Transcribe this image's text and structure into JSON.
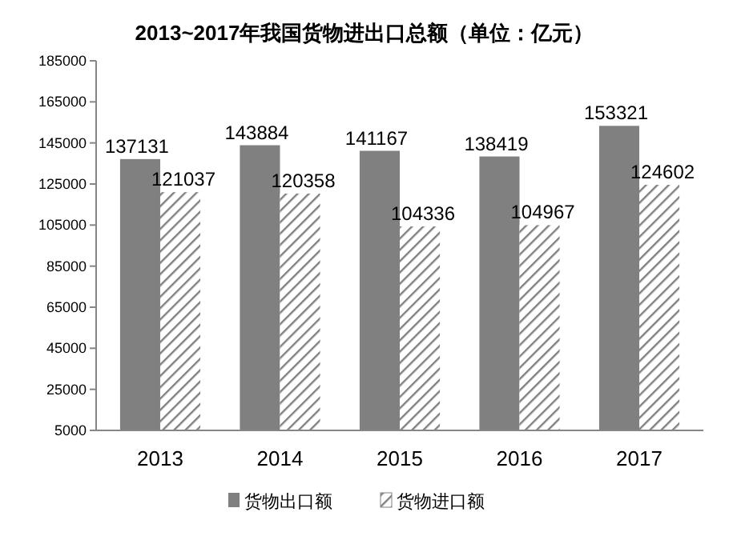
{
  "chart_data": {
    "type": "bar",
    "title": "2013~2017年我国货物进出口总额（单位：亿元）",
    "categories": [
      "2013",
      "2014",
      "2015",
      "2016",
      "2017"
    ],
    "series": [
      {
        "name": "货物出口额",
        "color": "#808080",
        "values": [
          137131,
          143884,
          141167,
          138419,
          153321
        ]
      },
      {
        "name": "货物进口额",
        "color": "#808080",
        "values": [
          121037,
          120358,
          104336,
          104967,
          124602
        ]
      }
    ],
    "ylim": [
      5000,
      185000
    ],
    "yticks": [
      5000,
      25000,
      45000,
      65000,
      85000,
      105000,
      125000,
      145000,
      165000,
      185000
    ],
    "data_labels": true,
    "legend": "bottom",
    "grid": false
  }
}
